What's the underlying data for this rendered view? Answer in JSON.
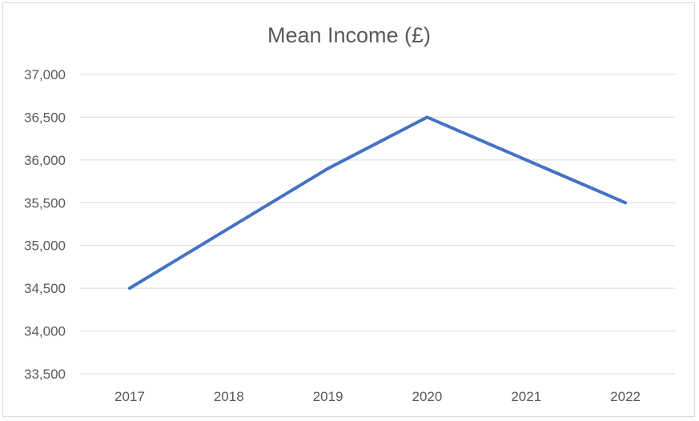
{
  "chart_data": {
    "type": "line",
    "title": "Mean Income (£)",
    "xlabel": "",
    "ylabel": "",
    "categories": [
      "2017",
      "2018",
      "2019",
      "2020",
      "2021",
      "2022"
    ],
    "series": [
      {
        "values": [
          34500,
          35200,
          35900,
          36500,
          36000,
          35500
        ],
        "color": "#4472C4"
      }
    ],
    "ylim": [
      33500,
      37000
    ],
    "yticks": [
      33500,
      34000,
      34500,
      35000,
      35500,
      36000,
      36500,
      37000
    ],
    "ytick_labels": [
      "33,500",
      "34,000",
      "34,500",
      "35,000",
      "35,500",
      "36,000",
      "36,500",
      "37,000"
    ],
    "grid": true,
    "legend": "none",
    "gridline_color": "#d9d9d9"
  }
}
